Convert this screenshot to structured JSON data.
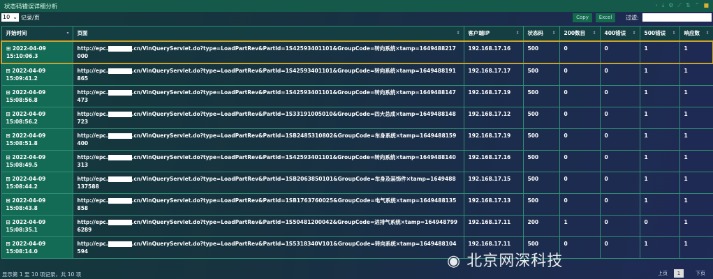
{
  "title": "状态码错误详细分析",
  "toolbar": {
    "page_size": "10",
    "page_size_label": "记录/页",
    "copy": "Copy",
    "excel": "Excel",
    "filter_label": "过滤:",
    "filter_value": ""
  },
  "columns": [
    "开始时间",
    "页面",
    "客户端IP",
    "状态码",
    "200数目",
    "400错误",
    "500错误",
    "响应数"
  ],
  "url_prefix": "http://epc.",
  "rows": [
    {
      "date": "2022-04-09",
      "time": "15:10:06.3",
      "url": ".cn/VinQueryServlet.do?type=LoadPartRev&PartId=1S42593401101&GroupCode=转向系统×tamp=1649488217000",
      "ip": "192.168.17.16",
      "status": "500",
      "c200": "0",
      "c400": "0",
      "c500": "1",
      "resp": "1"
    },
    {
      "date": "2022-04-09",
      "time": "15:09:41.2",
      "url": ".cn/VinQueryServlet.do?type=LoadPartRev&PartId=1S42593401101&GroupCode=转向系统×tamp=1649488191865",
      "ip": "192.168.17.17",
      "status": "500",
      "c200": "0",
      "c400": "0",
      "c500": "1",
      "resp": "1"
    },
    {
      "date": "2022-04-09",
      "time": "15:08:56.8",
      "url": ".cn/VinQueryServlet.do?type=LoadPartRev&PartId=1S42593401101&GroupCode=转向系统×tamp=1649488147473",
      "ip": "192.168.17.19",
      "status": "500",
      "c200": "0",
      "c400": "0",
      "c500": "1",
      "resp": "1"
    },
    {
      "date": "2022-04-09",
      "time": "15:08:56.2",
      "url": ".cn/VinQueryServlet.do?type=LoadPartRev&PartId=1S33191005010&GroupCode=四大总成×tamp=1649488148723",
      "ip": "192.168.17.12",
      "status": "500",
      "c200": "0",
      "c400": "0",
      "c500": "1",
      "resp": "1"
    },
    {
      "date": "2022-04-09",
      "time": "15:08:51.8",
      "url": ".cn/VinQueryServlet.do?type=LoadPartRev&PartId=1SB2485310802&GroupCode=车身系统×tamp=1649488159400",
      "ip": "192.168.17.19",
      "status": "500",
      "c200": "0",
      "c400": "0",
      "c500": "1",
      "resp": "1"
    },
    {
      "date": "2022-04-09",
      "time": "15:08:49.5",
      "url": ".cn/VinQueryServlet.do?type=LoadPartRev&PartId=1S42593401101&GroupCode=转向系统×tamp=1649488140313",
      "ip": "192.168.17.16",
      "status": "500",
      "c200": "0",
      "c400": "0",
      "c500": "1",
      "resp": "1"
    },
    {
      "date": "2022-04-09",
      "time": "15:08:44.2",
      "url": ".cn/VinQueryServlet.do?type=LoadPartRev&PartId=1SB2063850101&GroupCode=车身及装饰件×tamp=1649488137588",
      "ip": "192.168.17.15",
      "status": "500",
      "c200": "0",
      "c400": "0",
      "c500": "1",
      "resp": "1"
    },
    {
      "date": "2022-04-09",
      "time": "15:08:43.8",
      "url": ".cn/VinQueryServlet.do?type=LoadPartRev&PartId=1SB1763760025&GroupCode=电气系统×tamp=1649488135858",
      "ip": "192.168.17.13",
      "status": "500",
      "c200": "0",
      "c400": "0",
      "c500": "1",
      "resp": "1"
    },
    {
      "date": "2022-04-09",
      "time": "15:08:35.1",
      "url": ".cn/VinQueryServlet.do?type=LoadPartRev&PartId=1S50481200042&GroupCode=进排气系统×tamp=1649487996289",
      "ip": "192.168.17.11",
      "status": "200",
      "c200": "1",
      "c400": "0",
      "c500": "0",
      "resp": "1"
    },
    {
      "date": "2022-04-09",
      "time": "15:08:14.0",
      "url": ".cn/VinQueryServlet.do?type=LoadPartRev&PartId=1S5318340V101&GroupCode=转向系统×tamp=1649488104594",
      "ip": "192.168.17.11",
      "status": "500",
      "c200": "0",
      "c400": "0",
      "c500": "1",
      "resp": "1"
    }
  ],
  "footer": {
    "info": "显示第 1 至 10 项记录，共 10 项",
    "prev": "上页",
    "page": "1",
    "next": "下页"
  },
  "watermark": "北京网深科技"
}
